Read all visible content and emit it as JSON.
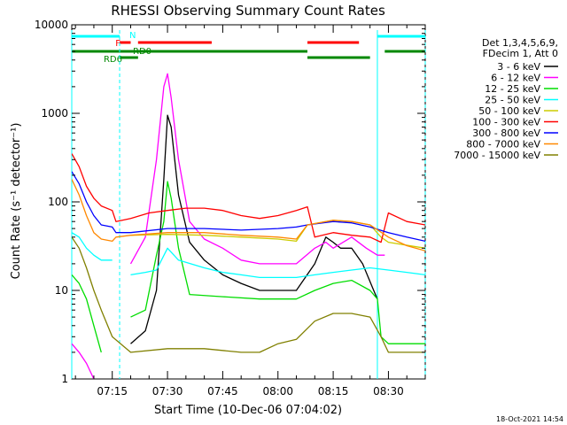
{
  "chart_data": {
    "type": "line",
    "title": "RHESSI Observing Summary Count Rates",
    "xlabel": "Start Time (10-Dec-06 07:04:02)",
    "ylabel": "Count Rate (s⁻¹ detector⁻¹)",
    "y_scale": "log",
    "ylim": [
      1,
      10000
    ],
    "xlim": [
      "07:04",
      "08:40"
    ],
    "y_ticks": [
      {
        "value": 1,
        "label": "1"
      },
      {
        "value": 10,
        "label": "10"
      },
      {
        "value": 100,
        "label": "100"
      },
      {
        "value": 1000,
        "label": "1000"
      },
      {
        "value": 10000,
        "label": "10000"
      }
    ],
    "x_ticks": [
      {
        "value": "07:15",
        "label": "07:15"
      },
      {
        "value": "07:30",
        "label": "07:30"
      },
      {
        "value": "07:45",
        "label": "07:45"
      },
      {
        "value": "08:00",
        "label": "08:00"
      },
      {
        "value": "08:15",
        "label": "08:15"
      },
      {
        "value": "08:30",
        "label": "08:30"
      }
    ],
    "legend": {
      "placement": "right",
      "header": [
        "Det 1,3,4,5,6,9,",
        "FDecim 1, Att 0"
      ]
    },
    "series": [
      {
        "name": "3 - 6 keV",
        "color": "#000000",
        "x": [
          "07:04",
          "07:08",
          "07:12",
          "07:15",
          "07:20",
          "07:24",
          "07:27",
          "07:29",
          "07:30",
          "07:31",
          "07:33",
          "07:36",
          "07:40",
          "07:45",
          "07:50",
          "07:55",
          "08:00",
          "08:05",
          "08:10",
          "08:13",
          "08:15",
          "08:17",
          "08:20",
          "08:23",
          "08:26",
          "08:27"
        ],
        "y": [
          null,
          null,
          null,
          null,
          2.5,
          3.5,
          10,
          180,
          950,
          700,
          120,
          35,
          22,
          15,
          12,
          10,
          10,
          10,
          20,
          40,
          35,
          30,
          30,
          20,
          10,
          8
        ]
      },
      {
        "name": "6 - 12 keV",
        "color": "#ff00ff",
        "x": [
          "07:04",
          "07:06",
          "07:08",
          "07:10",
          "07:12",
          "07:16",
          "07:20",
          "07:24",
          "07:27",
          "07:29",
          "07:30",
          "07:31",
          "07:33",
          "07:36",
          "07:40",
          "07:45",
          "07:50",
          "07:55",
          "08:00",
          "08:05",
          "08:10",
          "08:13",
          "08:15",
          "08:20",
          "08:24",
          "08:27",
          "08:29",
          "08:30"
        ],
        "y": [
          2.5,
          2,
          1.5,
          1,
          null,
          null,
          20,
          40,
          300,
          2000,
          2800,
          1500,
          300,
          60,
          38,
          30,
          22,
          20,
          20,
          20,
          30,
          35,
          30,
          40,
          30,
          25,
          25,
          null
        ]
      },
      {
        "name": "12 - 25 keV",
        "color": "#00dd00",
        "x": [
          "07:04",
          "07:06",
          "07:08",
          "07:10",
          "07:12",
          "07:16",
          "07:20",
          "07:24",
          "07:27",
          "07:29",
          "07:30",
          "07:31",
          "07:33",
          "07:36",
          "07:45",
          "07:55",
          "08:05",
          "08:10",
          "08:15",
          "08:20",
          "08:25",
          "08:27",
          "08:28",
          "08:30",
          "08:40"
        ],
        "y": [
          15,
          12,
          8,
          4,
          2,
          null,
          5,
          6,
          25,
          60,
          170,
          110,
          30,
          9,
          8.5,
          8,
          8,
          10,
          12,
          13,
          10,
          8,
          3,
          2.5,
          2.5
        ]
      },
      {
        "name": "25 - 50 keV",
        "color": "#00ffff",
        "x": [
          "07:04",
          "07:06",
          "07:08",
          "07:10",
          "07:12",
          "07:15",
          "07:16",
          "07:20",
          "07:24",
          "07:27",
          "07:30",
          "07:33",
          "07:40",
          "07:45",
          "07:50",
          "07:55",
          "08:00",
          "08:05",
          "08:10",
          "08:15",
          "08:20",
          "08:25",
          "08:30",
          "08:35",
          "08:40"
        ],
        "y": [
          45,
          40,
          30,
          25,
          22,
          22,
          null,
          15,
          16,
          17,
          30,
          22,
          18,
          16,
          15,
          14,
          14,
          14,
          15,
          16,
          17,
          18,
          17,
          16,
          15
        ]
      },
      {
        "name": "50 - 100 keV",
        "color": "#cccc00",
        "x": [
          "07:04",
          "07:06",
          "07:08",
          "07:10",
          "07:12",
          "07:16",
          "07:20",
          "07:30",
          "07:40",
          "07:50",
          "08:00",
          "08:05",
          "08:08",
          "08:15",
          "08:20",
          "08:25",
          "08:28",
          "08:30",
          "08:40"
        ],
        "y": [
          null,
          null,
          null,
          null,
          null,
          null,
          42,
          43,
          42,
          40,
          38,
          36,
          55,
          62,
          60,
          55,
          40,
          35,
          30
        ]
      },
      {
        "name": "100 - 300 keV",
        "color": "#ff0000",
        "x": [
          "07:04",
          "07:06",
          "07:08",
          "07:10",
          "07:12",
          "07:15",
          "07:16",
          "07:20",
          "07:25",
          "07:30",
          "07:35",
          "07:40",
          "07:45",
          "07:50",
          "07:55",
          "08:00",
          "08:05",
          "08:08",
          "08:10",
          "08:15",
          "08:20",
          "08:25",
          "08:28",
          "08:30",
          "08:35",
          "08:40"
        ],
        "y": [
          350,
          250,
          150,
          110,
          90,
          80,
          60,
          65,
          75,
          80,
          85,
          85,
          80,
          70,
          65,
          70,
          80,
          88,
          40,
          45,
          42,
          40,
          35,
          75,
          60,
          55
        ]
      },
      {
        "name": "300 - 800 keV",
        "color": "#0000ff",
        "x": [
          "07:04",
          "07:06",
          "07:08",
          "07:10",
          "07:12",
          "07:15",
          "07:16",
          "07:20",
          "07:30",
          "07:40",
          "07:50",
          "08:00",
          "08:05",
          "08:08",
          "08:15",
          "08:20",
          "08:25",
          "08:30",
          "08:35",
          "08:40"
        ],
        "y": [
          220,
          160,
          100,
          70,
          55,
          52,
          45,
          45,
          50,
          50,
          48,
          50,
          52,
          55,
          60,
          58,
          52,
          45,
          40,
          36
        ]
      },
      {
        "name": "800 - 7000 keV",
        "color": "#ff8800",
        "x": [
          "07:04",
          "07:06",
          "07:08",
          "07:10",
          "07:12",
          "07:15",
          "07:16",
          "07:20",
          "07:30",
          "07:40",
          "07:50",
          "08:00",
          "08:05",
          "08:08",
          "08:15",
          "08:20",
          "08:25",
          "08:30",
          "08:35",
          "08:40"
        ],
        "y": [
          180,
          120,
          70,
          45,
          38,
          36,
          40,
          42,
          45,
          45,
          42,
          40,
          38,
          55,
          62,
          60,
          55,
          40,
          32,
          28
        ]
      },
      {
        "name": "7000 - 15000 keV",
        "color": "#808000",
        "x": [
          "07:04",
          "07:06",
          "07:08",
          "07:10",
          "07:12",
          "07:15",
          "07:20",
          "07:30",
          "07:40",
          "07:50",
          "07:55",
          "08:00",
          "08:05",
          "08:10",
          "08:15",
          "08:20",
          "08:25",
          "08:28",
          "08:30",
          "08:40"
        ],
        "y": [
          40,
          30,
          18,
          10,
          6,
          3,
          2,
          2.2,
          2.2,
          2,
          2,
          2.5,
          2.8,
          4.5,
          5.5,
          5.5,
          5,
          3,
          2,
          2
        ]
      }
    ],
    "status_bars": [
      {
        "label": "N",
        "color": "#00ffff",
        "segments": [
          [
            "07:04",
            "07:17"
          ],
          [
            "08:27",
            "08:40"
          ]
        ]
      },
      {
        "label": "F",
        "color": "#ff0000",
        "segments": [
          [
            "07:17",
            "07:20"
          ],
          [
            "07:22",
            "07:42"
          ],
          [
            "08:08",
            "08:22"
          ]
        ]
      },
      {
        "label": "RD6",
        "color": "#008800",
        "segments": [
          [
            "07:17",
            "07:22"
          ],
          [
            "08:08",
            "08:25"
          ]
        ]
      },
      {
        "label": "RD0",
        "color": "#008800",
        "segments": [
          [
            "07:04",
            "08:08"
          ],
          [
            "08:29",
            "08:40"
          ]
        ]
      }
    ],
    "vertical_markers": [
      {
        "x": "07:04",
        "color": "#00ffff",
        "style": "solid"
      },
      {
        "x": "07:17",
        "color": "#00ffff",
        "style": "dashed"
      },
      {
        "x": "08:27",
        "color": "#00ffff",
        "style": "solid"
      },
      {
        "x": "08:40",
        "color": "#00ffff",
        "style": "dashed"
      }
    ],
    "timestamp": "18-Oct-2021 14:54"
  }
}
